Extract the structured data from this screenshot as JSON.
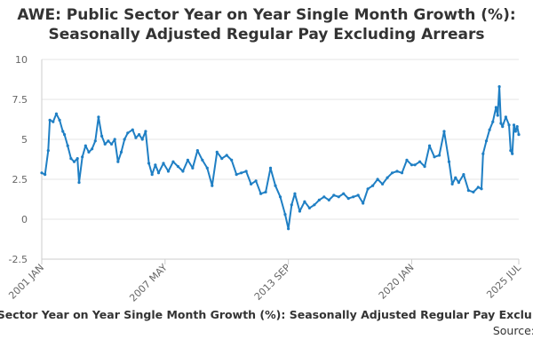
{
  "chart_data": {
    "type": "line",
    "title": "AWE: Public Sector Year on Year Single Month Growth (%): Seasonally Adjusted Regular Pay Excluding Arrears",
    "title_lines": [
      "AWE: Public Sector Year on Year Single Month Growth (%):",
      "Seasonally Adjusted Regular Pay Excluding Arrears"
    ],
    "legend_text": "c Sector Year on Year Single Month Growth (%): Seasonally Adjusted Regular Pay Exclu",
    "source_text": "Source:",
    "ylim": [
      -2.5,
      10
    ],
    "yticks": [
      -2.5,
      0,
      2.5,
      5,
      7.5,
      10
    ],
    "ytick_labels": [
      "-2.5",
      "0",
      "2.5",
      "5",
      "7.5",
      "10"
    ],
    "xlim": [
      "2001-01",
      "2025-07"
    ],
    "xticks": [
      "2001-01",
      "2007-05",
      "2013-09",
      "2020-01",
      "2025-07"
    ],
    "xtick_labels": [
      "2001 JAN",
      "2007 MAY",
      "2013 SEP",
      "2020 JAN",
      "2025 JUL"
    ],
    "grid": true,
    "line_color": "#1f7fc4",
    "series": [
      {
        "values": [
          [
            "2001-01",
            2.9
          ],
          [
            "2001-03",
            2.8
          ],
          [
            "2001-05",
            4.3
          ],
          [
            "2001-06",
            6.2
          ],
          [
            "2001-08",
            6.1
          ],
          [
            "2001-10",
            6.6
          ],
          [
            "2001-12",
            6.2
          ],
          [
            "2002-02",
            5.5
          ],
          [
            "2002-03",
            5.3
          ],
          [
            "2002-05",
            4.6
          ],
          [
            "2002-07",
            3.8
          ],
          [
            "2002-09",
            3.6
          ],
          [
            "2002-11",
            3.8
          ],
          [
            "2002-12",
            2.3
          ],
          [
            "2003-02",
            3.9
          ],
          [
            "2003-04",
            4.6
          ],
          [
            "2003-06",
            4.2
          ],
          [
            "2003-08",
            4.4
          ],
          [
            "2003-10",
            4.9
          ],
          [
            "2003-12",
            6.4
          ],
          [
            "2004-02",
            5.2
          ],
          [
            "2004-04",
            4.7
          ],
          [
            "2004-06",
            4.9
          ],
          [
            "2004-08",
            4.7
          ],
          [
            "2004-10",
            5.0
          ],
          [
            "2004-12",
            3.6
          ],
          [
            "2005-02",
            4.2
          ],
          [
            "2005-04",
            5.0
          ],
          [
            "2005-06",
            5.4
          ],
          [
            "2005-09",
            5.6
          ],
          [
            "2005-11",
            5.1
          ],
          [
            "2006-01",
            5.3
          ],
          [
            "2006-03",
            5.0
          ],
          [
            "2006-05",
            5.5
          ],
          [
            "2006-07",
            3.5
          ],
          [
            "2006-09",
            2.8
          ],
          [
            "2006-11",
            3.4
          ],
          [
            "2007-01",
            2.9
          ],
          [
            "2007-04",
            3.5
          ],
          [
            "2007-07",
            3.0
          ],
          [
            "2007-10",
            3.6
          ],
          [
            "2008-01",
            3.3
          ],
          [
            "2008-04",
            3.0
          ],
          [
            "2008-07",
            3.7
          ],
          [
            "2008-10",
            3.2
          ],
          [
            "2009-01",
            4.3
          ],
          [
            "2009-04",
            3.7
          ],
          [
            "2009-07",
            3.2
          ],
          [
            "2009-10",
            2.1
          ],
          [
            "2010-01",
            4.2
          ],
          [
            "2010-04",
            3.8
          ],
          [
            "2010-07",
            4.0
          ],
          [
            "2010-10",
            3.7
          ],
          [
            "2011-01",
            2.8
          ],
          [
            "2011-04",
            2.9
          ],
          [
            "2011-07",
            3.0
          ],
          [
            "2011-10",
            2.2
          ],
          [
            "2012-01",
            2.4
          ],
          [
            "2012-04",
            1.6
          ],
          [
            "2012-07",
            1.7
          ],
          [
            "2012-10",
            3.2
          ],
          [
            "2013-01",
            2.1
          ],
          [
            "2013-04",
            1.4
          ],
          [
            "2013-07",
            0.3
          ],
          [
            "2013-09",
            -0.6
          ],
          [
            "2013-11",
            0.9
          ],
          [
            "2014-01",
            1.6
          ],
          [
            "2014-04",
            0.5
          ],
          [
            "2014-07",
            1.1
          ],
          [
            "2014-10",
            0.7
          ],
          [
            "2015-01",
            0.9
          ],
          [
            "2015-04",
            1.2
          ],
          [
            "2015-07",
            1.4
          ],
          [
            "2015-10",
            1.2
          ],
          [
            "2016-01",
            1.5
          ],
          [
            "2016-04",
            1.4
          ],
          [
            "2016-07",
            1.6
          ],
          [
            "2016-10",
            1.3
          ],
          [
            "2017-01",
            1.4
          ],
          [
            "2017-04",
            1.5
          ],
          [
            "2017-07",
            1.0
          ],
          [
            "2017-10",
            1.9
          ],
          [
            "2018-01",
            2.1
          ],
          [
            "2018-04",
            2.5
          ],
          [
            "2018-07",
            2.2
          ],
          [
            "2018-10",
            2.6
          ],
          [
            "2019-01",
            2.9
          ],
          [
            "2019-04",
            3.0
          ],
          [
            "2019-07",
            2.9
          ],
          [
            "2019-10",
            3.7
          ],
          [
            "2020-01",
            3.4
          ],
          [
            "2020-03",
            3.4
          ],
          [
            "2020-06",
            3.6
          ],
          [
            "2020-09",
            3.3
          ],
          [
            "2020-12",
            4.6
          ],
          [
            "2021-03",
            3.9
          ],
          [
            "2021-06",
            4.0
          ],
          [
            "2021-09",
            5.5
          ],
          [
            "2021-12",
            3.6
          ],
          [
            "2022-02",
            2.2
          ],
          [
            "2022-04",
            2.6
          ],
          [
            "2022-06",
            2.3
          ],
          [
            "2022-09",
            2.8
          ],
          [
            "2022-12",
            1.8
          ],
          [
            "2023-03",
            1.7
          ],
          [
            "2023-06",
            2.0
          ],
          [
            "2023-08",
            1.9
          ],
          [
            "2023-09",
            4.1
          ],
          [
            "2023-11",
            4.9
          ],
          [
            "2024-01",
            5.6
          ],
          [
            "2024-03",
            6.1
          ],
          [
            "2024-05",
            7.0
          ],
          [
            "2024-06",
            6.5
          ],
          [
            "2024-07",
            8.3
          ],
          [
            "2024-08",
            6.0
          ],
          [
            "2024-09",
            5.8
          ],
          [
            "2024-11",
            6.4
          ],
          [
            "2025-01",
            5.9
          ],
          [
            "2025-02",
            4.3
          ],
          [
            "2025-03",
            4.1
          ],
          [
            "2025-04",
            5.9
          ],
          [
            "2025-05",
            5.5
          ],
          [
            "2025-06",
            5.8
          ],
          [
            "2025-07",
            5.3
          ]
        ]
      }
    ]
  }
}
